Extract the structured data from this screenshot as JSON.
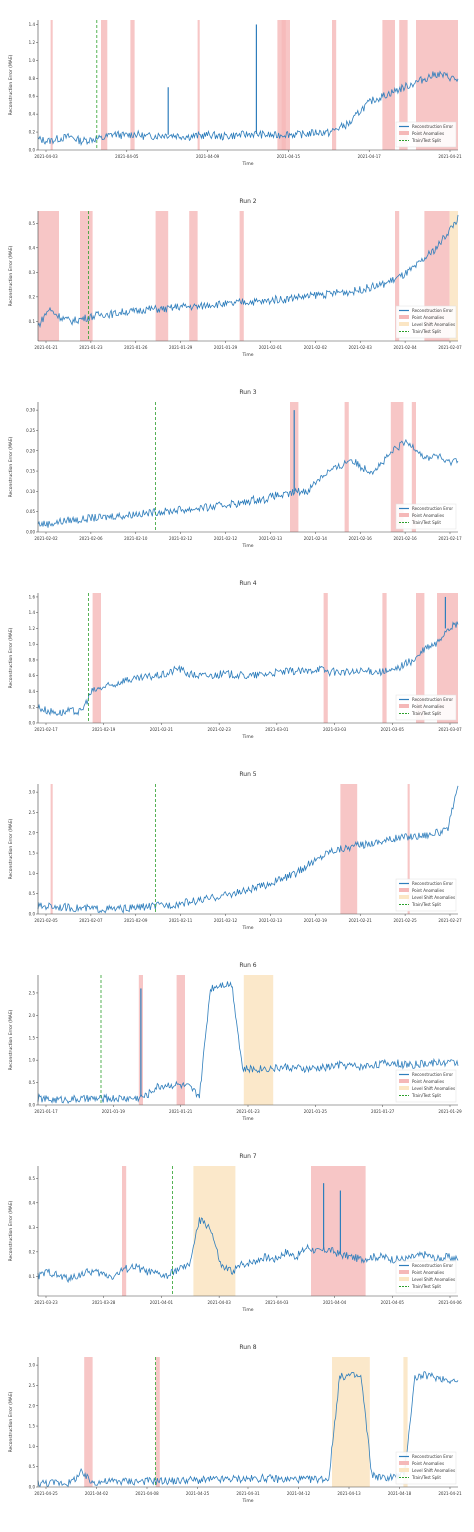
{
  "colors": {
    "error_line": "#2f7ebc",
    "point_anomaly": "#f5b8b8",
    "level_shift": "#fbe6c4",
    "split_line": "#2ca02c",
    "axis": "#444444"
  },
  "chart_data": [
    {
      "type": "line",
      "title": "",
      "xlabel": "Time",
      "ylabel": "Reconstruction Error (MAE)",
      "x_ticks": [
        "2021-04-03",
        "2021-04-05",
        "2021-04-09",
        "2021-04-15",
        "2021-04-17",
        "2021-04-21"
      ],
      "y_ticks": [
        "0.0",
        "0.2",
        "0.4",
        "0.6",
        "0.8",
        "1.0",
        "1.2",
        "1.4"
      ],
      "ylim": [
        0,
        1.45
      ],
      "legend": [
        "Reconstruction Error",
        "Point Anomalies",
        "Train/Test Split"
      ],
      "split_fraction": 0.14,
      "point_anomaly_spans": [
        [
          0.03,
          0.035
        ],
        [
          0.15,
          0.165
        ],
        [
          0.22,
          0.23
        ],
        [
          0.38,
          0.385
        ],
        [
          0.57,
          0.59
        ],
        [
          0.58,
          0.6
        ],
        [
          0.7,
          0.71
        ],
        [
          0.82,
          0.85
        ],
        [
          0.86,
          0.88
        ],
        [
          0.9,
          1.0
        ],
        [
          1.05,
          1.1
        ]
      ],
      "level_shift_spans": [],
      "series": [
        {
          "name": "Reconstruction Error",
          "values": [
            0.12,
            0.1,
            0.13,
            0.15,
            0.1,
            0.12,
            0.13,
            0.18,
            0.16,
            0.18,
            0.15,
            0.16,
            0.17,
            0.16,
            0.15,
            0.16,
            0.17,
            0.15,
            0.16,
            0.17,
            0.18,
            0.17,
            0.16,
            0.18,
            0.17,
            0.18,
            0.2,
            0.19,
            0.25,
            0.3,
            0.45,
            0.55,
            0.6,
            0.65,
            0.7,
            0.75,
            0.8,
            0.85,
            0.82,
            0.78
          ]
        }
      ],
      "spikes": [
        [
          0.31,
          0.7
        ],
        [
          0.52,
          1.4
        ]
      ]
    },
    {
      "type": "line",
      "title": "Run 2",
      "xlabel": "Time",
      "ylabel": "Reconstruction Error (MAE)",
      "x_ticks": [
        "2021-01-21",
        "2021-01-23",
        "2021-01-26",
        "2021-01-29",
        "2021-01-29",
        "2021-02-01",
        "2021-02-02",
        "2021-02-03",
        "2021-02-04",
        "2021-02-07"
      ],
      "y_ticks": [
        "0.1",
        "0.2",
        "0.3",
        "0.4",
        "0.5"
      ],
      "ylim": [
        0.02,
        0.55
      ],
      "legend": [
        "Reconstruction Error",
        "Point Anomalies",
        "Level Shift Anomalies",
        "Train/Test Split"
      ],
      "split_fraction": 0.12,
      "point_anomaly_spans": [
        [
          0.0,
          0.05
        ],
        [
          0.1,
          0.13
        ],
        [
          0.28,
          0.31
        ],
        [
          0.36,
          0.38
        ],
        [
          0.48,
          0.49
        ],
        [
          0.85,
          0.86
        ],
        [
          0.92,
          0.98
        ]
      ],
      "level_shift_spans": [
        [
          0.98,
          1.0
        ]
      ],
      "series": [
        {
          "name": "Reconstruction Error",
          "values": [
            0.08,
            0.15,
            0.12,
            0.1,
            0.11,
            0.12,
            0.13,
            0.13,
            0.14,
            0.14,
            0.15,
            0.15,
            0.15,
            0.16,
            0.16,
            0.16,
            0.17,
            0.17,
            0.17,
            0.18,
            0.18,
            0.18,
            0.19,
            0.19,
            0.2,
            0.2,
            0.21,
            0.21,
            0.22,
            0.22,
            0.23,
            0.24,
            0.25,
            0.27,
            0.29,
            0.32,
            0.36,
            0.4,
            0.46,
            0.52
          ]
        }
      ],
      "spikes": []
    },
    {
      "type": "line",
      "title": "Run 3",
      "xlabel": "Time",
      "ylabel": "Reconstruction Error (MAE)",
      "x_ticks": [
        "2021-02-02",
        "2021-02-06",
        "2021-02-10",
        "2021-02-12",
        "2021-02-12",
        "2021-02-13",
        "2021-02-14",
        "2021-02-16",
        "2021-02-16",
        "2021-02-17"
      ],
      "y_ticks": [
        "0.00",
        "0.05",
        "0.10",
        "0.15",
        "0.20",
        "0.25",
        "0.30"
      ],
      "ylim": [
        0,
        0.32
      ],
      "legend": [
        "Reconstruction Error",
        "Point Anomalies",
        "Train/Test Split"
      ],
      "split_fraction": 0.28,
      "point_anomaly_spans": [
        [
          0.6,
          0.62
        ],
        [
          0.73,
          0.74
        ],
        [
          0.84,
          0.87
        ],
        [
          0.89,
          0.9
        ]
      ],
      "level_shift_spans": [],
      "series": [
        {
          "name": "Reconstruction Error",
          "values": [
            0.02,
            0.02,
            0.025,
            0.03,
            0.03,
            0.035,
            0.035,
            0.04,
            0.04,
            0.045,
            0.045,
            0.05,
            0.05,
            0.055,
            0.055,
            0.06,
            0.06,
            0.065,
            0.07,
            0.07,
            0.08,
            0.08,
            0.09,
            0.09,
            0.1,
            0.1,
            0.13,
            0.15,
            0.16,
            0.18,
            0.16,
            0.15,
            0.17,
            0.2,
            0.22,
            0.21,
            0.18,
            0.19,
            0.17,
            0.18
          ]
        }
      ],
      "spikes": [
        [
          0.61,
          0.3
        ]
      ]
    },
    {
      "type": "line",
      "title": "Run 4",
      "xlabel": "Time",
      "ylabel": "Reconstruction Error (MAE)",
      "x_ticks": [
        "2021-02-17",
        "2021-02-19",
        "2021-02-21",
        "2021-02-23",
        "2021-03-01",
        "2021-03-03",
        "2021-03-05",
        "2021-03-07"
      ],
      "y_ticks": [
        "0.0",
        "0.2",
        "0.4",
        "0.6",
        "0.8",
        "1.0",
        "1.2",
        "1.4",
        "1.6"
      ],
      "ylim": [
        0,
        1.65
      ],
      "legend": [
        "Reconstruction Error",
        "Point Anomalies",
        "Train/Test Split"
      ],
      "split_fraction": 0.12,
      "point_anomaly_spans": [
        [
          0.13,
          0.15
        ],
        [
          0.68,
          0.69
        ],
        [
          0.82,
          0.83
        ],
        [
          0.9,
          0.92
        ],
        [
          0.95,
          1.0
        ]
      ],
      "level_shift_spans": [],
      "series": [
        {
          "name": "Reconstruction Error",
          "values": [
            0.2,
            0.15,
            0.13,
            0.15,
            0.14,
            0.4,
            0.45,
            0.48,
            0.55,
            0.55,
            0.58,
            0.6,
            0.62,
            0.7,
            0.62,
            0.6,
            0.6,
            0.62,
            0.62,
            0.6,
            0.6,
            0.62,
            0.64,
            0.65,
            0.66,
            0.65,
            0.7,
            0.65,
            0.65,
            0.64,
            0.65,
            0.66,
            0.65,
            0.66,
            0.75,
            0.8,
            0.95,
            1.0,
            1.2,
            1.25
          ]
        }
      ],
      "spikes": [
        [
          0.97,
          1.6
        ]
      ]
    },
    {
      "type": "line",
      "title": "Run 5",
      "xlabel": "Time",
      "ylabel": "Reconstruction Error (MAE)",
      "x_ticks": [
        "2021-02-05",
        "2021-02-07",
        "2021-02-09",
        "2021-02-11",
        "2021-02-12",
        "2021-02-13",
        "2021-02-19",
        "2021-02-21",
        "2021-02-25",
        "2021-02-27"
      ],
      "y_ticks": [
        "0.0",
        "0.5",
        "1.0",
        "1.5",
        "2.0",
        "2.5",
        "3.0"
      ],
      "ylim": [
        0,
        3.2
      ],
      "legend": [
        "Reconstruction Error",
        "Point Anomalies",
        "Level Shift Anomalies",
        "Train/Test Split"
      ],
      "split_fraction": 0.28,
      "point_anomaly_spans": [
        [
          0.03,
          0.035
        ],
        [
          0.72,
          0.76
        ],
        [
          0.88,
          0.885
        ]
      ],
      "level_shift_spans": [],
      "series": [
        {
          "name": "Reconstruction Error",
          "values": [
            0.18,
            0.2,
            0.18,
            0.15,
            0.14,
            0.13,
            0.12,
            0.12,
            0.13,
            0.15,
            0.18,
            0.2,
            0.22,
            0.25,
            0.3,
            0.33,
            0.38,
            0.45,
            0.5,
            0.55,
            0.62,
            0.7,
            0.8,
            0.9,
            1.0,
            1.2,
            1.35,
            1.55,
            1.6,
            1.65,
            1.7,
            1.75,
            1.8,
            1.85,
            1.9,
            1.92,
            1.95,
            2.0,
            2.05,
            3.1
          ]
        }
      ],
      "spikes": []
    },
    {
      "type": "line",
      "title": "Run 6",
      "xlabel": "Time",
      "ylabel": "Reconstruction Error (MAE)",
      "x_ticks": [
        "2021-01-17",
        "2021-01-19",
        "2021-01-21",
        "2021-01-23",
        "2021-01-25",
        "2021-01-27",
        "2021-01-29"
      ],
      "y_ticks": [
        "0.0",
        "0.5",
        "1.0",
        "1.5",
        "2.0",
        "2.5"
      ],
      "ylim": [
        0,
        2.9
      ],
      "legend": [
        "Reconstruction Error",
        "Point Anomalies",
        "Level Shift Anomalies",
        "Train/Test Split"
      ],
      "split_fraction": 0.15,
      "point_anomaly_spans": [
        [
          0.24,
          0.25
        ],
        [
          0.33,
          0.35
        ]
      ],
      "level_shift_spans": [
        [
          0.49,
          0.56
        ]
      ],
      "series": [
        {
          "name": "Reconstruction Error",
          "values": [
            0.15,
            0.12,
            0.12,
            0.13,
            0.13,
            0.14,
            0.14,
            0.15,
            0.15,
            0.15,
            0.2,
            0.4,
            0.45,
            0.45,
            0.4,
            0.2,
            2.6,
            2.7,
            2.7,
            0.8,
            0.8,
            0.82,
            0.82,
            0.85,
            0.82,
            0.8,
            0.82,
            0.85,
            0.9,
            0.88,
            0.85,
            0.9,
            0.92,
            0.95,
            0.9,
            0.9,
            0.92,
            0.95,
            0.95,
            0.95
          ]
        }
      ],
      "spikes": [
        [
          0.245,
          2.6
        ]
      ]
    },
    {
      "type": "line",
      "title": "Run 7",
      "xlabel": "Time",
      "ylabel": "Reconstruction Error (MAE)",
      "x_ticks": [
        "2021-03-23",
        "2021-03-28",
        "2021-04-01",
        "2021-04-03",
        "2021-04-03",
        "2021-04-04",
        "2021-04-05",
        "2021-04-06"
      ],
      "y_ticks": [
        "0.1",
        "0.2",
        "0.3",
        "0.4",
        "0.5"
      ],
      "ylim": [
        0.02,
        0.55
      ],
      "legend": [
        "Reconstruction Error",
        "Point Anomalies",
        "Level Shift Anomalies",
        "Train/Test Split"
      ],
      "split_fraction": 0.32,
      "point_anomaly_spans": [
        [
          0.2,
          0.21
        ],
        [
          0.65,
          0.78
        ]
      ],
      "level_shift_spans": [
        [
          0.37,
          0.47
        ]
      ],
      "series": [
        {
          "name": "Reconstruction Error",
          "values": [
            0.1,
            0.12,
            0.1,
            0.09,
            0.11,
            0.12,
            0.11,
            0.1,
            0.13,
            0.14,
            0.12,
            0.11,
            0.1,
            0.13,
            0.14,
            0.33,
            0.3,
            0.14,
            0.12,
            0.15,
            0.16,
            0.18,
            0.17,
            0.2,
            0.18,
            0.22,
            0.2,
            0.21,
            0.19,
            0.18,
            0.17,
            0.18,
            0.18,
            0.17,
            0.17,
            0.18,
            0.19,
            0.17,
            0.18,
            0.17
          ]
        }
      ],
      "spikes": [
        [
          0.68,
          0.48
        ],
        [
          0.72,
          0.45
        ]
      ]
    },
    {
      "type": "line",
      "title": "Run 8",
      "xlabel": "Time",
      "ylabel": "Reconstruction Error (MAE)",
      "x_ticks": [
        "2021-04-25",
        "2021-04-02",
        "2021-04-08",
        "2021-04-25",
        "2021-04-31",
        "2021-04-12",
        "2021-04-13",
        "2021-04-18",
        "2021-04-21"
      ],
      "y_ticks": [
        "0.0",
        "0.5",
        "1.0",
        "1.5",
        "2.0",
        "2.5",
        "3.0"
      ],
      "ylim": [
        0,
        3.2
      ],
      "legend": [
        "Reconstruction Error",
        "Point Anomalies",
        "Level Shift Anomalies",
        "Train/Test Split"
      ],
      "split_fraction": 0.28,
      "point_anomaly_spans": [
        [
          0.11,
          0.13
        ],
        [
          0.28,
          0.29
        ]
      ],
      "level_shift_spans": [
        [
          0.7,
          0.79
        ],
        [
          0.87,
          0.88
        ]
      ],
      "series": [
        {
          "name": "Reconstruction Error",
          "values": [
            0.1,
            0.1,
            0.11,
            0.1,
            0.35,
            0.12,
            0.13,
            0.14,
            0.15,
            0.14,
            0.15,
            0.15,
            0.15,
            0.15,
            0.18,
            0.16,
            0.18,
            0.18,
            0.2,
            0.2,
            0.2,
            0.22,
            0.2,
            0.18,
            0.2,
            0.18,
            0.2,
            0.2,
            2.7,
            2.75,
            2.7,
            0.3,
            0.22,
            0.25,
            0.3,
            2.7,
            2.75,
            2.7,
            2.65,
            2.6
          ]
        }
      ],
      "spikes": []
    }
  ]
}
